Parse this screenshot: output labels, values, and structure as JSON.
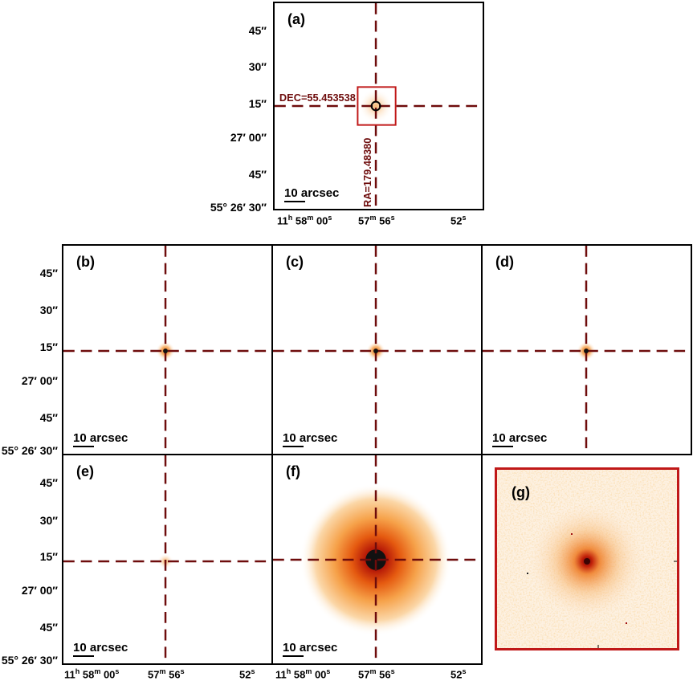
{
  "panels": {
    "a": {
      "label": "(a)",
      "scale_text": "10 arcsec"
    },
    "b": {
      "label": "(b)",
      "scale_text": "10 arcsec"
    },
    "c": {
      "label": "(c)",
      "scale_text": "10 arcsec"
    },
    "d": {
      "label": "(d)",
      "scale_text": "10 arcsec"
    },
    "e": {
      "label": "(e)",
      "scale_text": "10 arcsec"
    },
    "f": {
      "label": "(f)",
      "scale_text": "10 arcsec"
    },
    "g": {
      "label": "(g)"
    }
  },
  "annotations": {
    "dec": "DEC=55.453538",
    "ra": "RA=179.48380"
  },
  "yaxis": {
    "t45": "45″",
    "t30": "30″",
    "t15": "15″",
    "t00": "27′ 00″",
    "t45b": "45″",
    "t30b": "55° 26′ 30″"
  },
  "xaxis": {
    "t1_h": "11",
    "t1_hu": "h",
    "t1_m": " 58",
    "t1_mu": "m",
    "t1_s": " 00",
    "t1_su": "s",
    "t2_m": "57",
    "t2_mu": "m",
    "t2_s": " 56",
    "t2_su": "s",
    "t3_s": "52",
    "t3_su": "s"
  },
  "colors": {
    "crosshair": "#6e0c0c",
    "box": "#c01818",
    "glow": "#f28a1e"
  }
}
